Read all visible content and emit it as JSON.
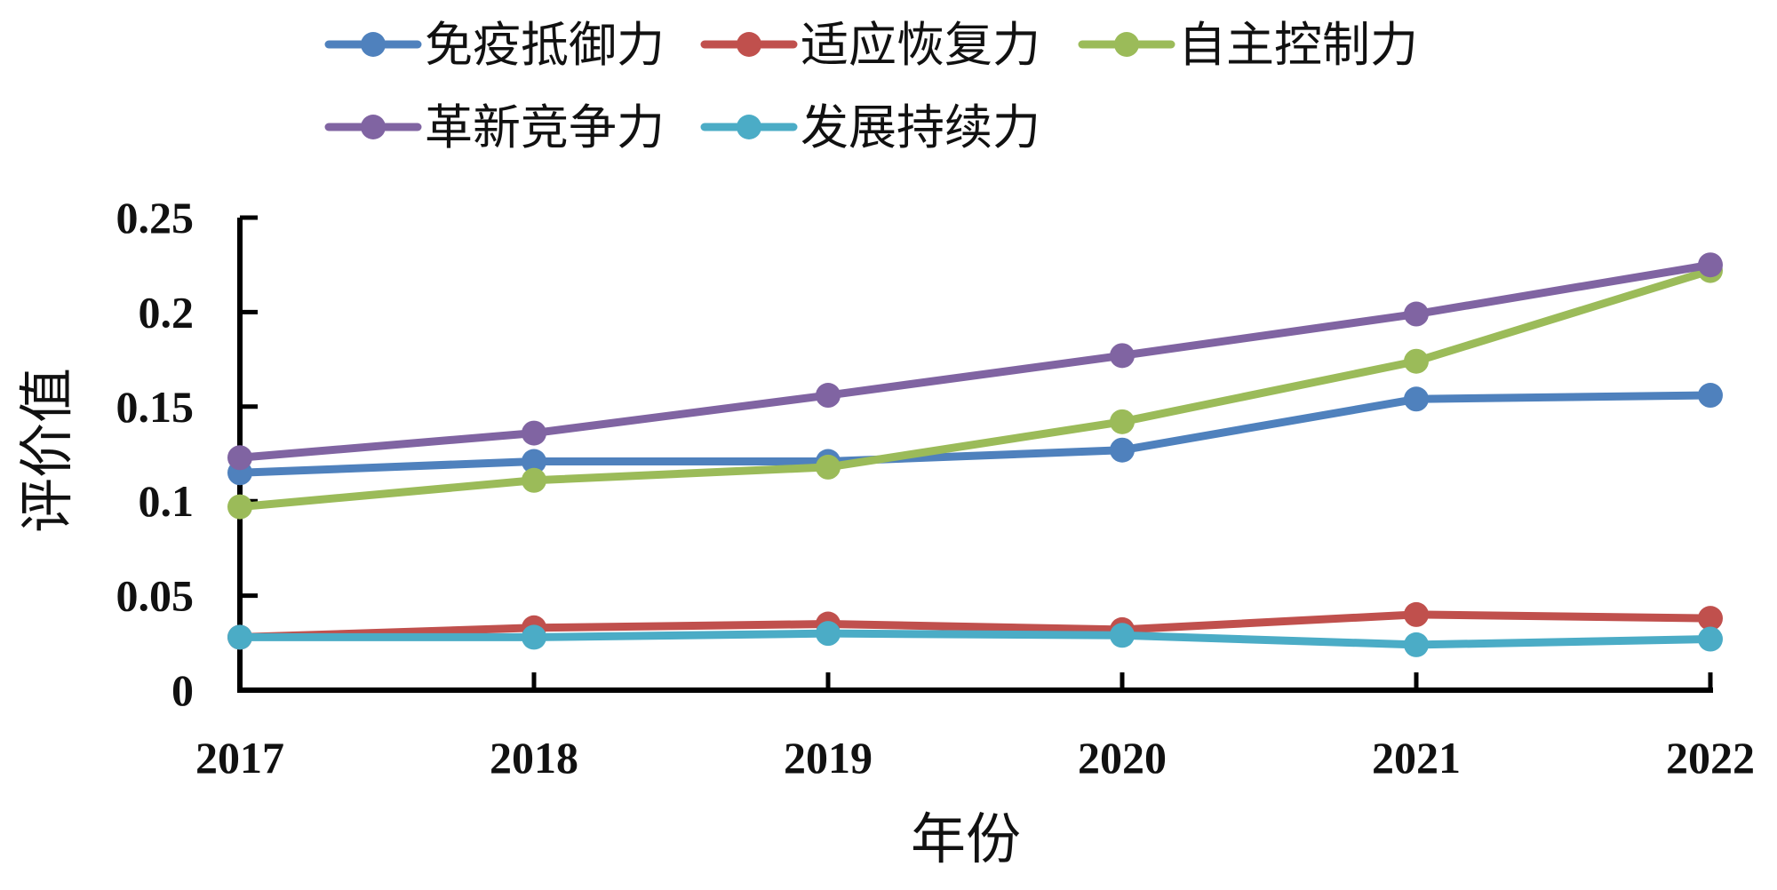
{
  "chart_data": {
    "type": "line",
    "title": "",
    "xlabel": "年份",
    "ylabel": "评价值",
    "x": [
      "2017",
      "2018",
      "2019",
      "2020",
      "2021",
      "2022"
    ],
    "ylim": [
      0,
      0.25
    ],
    "yticks": [
      0,
      0.05,
      0.1,
      0.15,
      0.2,
      0.25
    ],
    "ytick_labels": [
      "0",
      "0.05",
      "0.1",
      "0.15",
      "0.2",
      "0.25"
    ],
    "grid": false,
    "legend": "top",
    "series": [
      {
        "name": "免疫抵御力",
        "color": "#4F81BD",
        "values": [
          0.115,
          0.121,
          0.121,
          0.127,
          0.154,
          0.156
        ]
      },
      {
        "name": "适应恢复力",
        "color": "#C0504D",
        "values": [
          0.028,
          0.033,
          0.035,
          0.032,
          0.04,
          0.038
        ]
      },
      {
        "name": "自主控制力",
        "color": "#9BBB59",
        "values": [
          0.097,
          0.111,
          0.118,
          0.142,
          0.174,
          0.222
        ]
      },
      {
        "name": "革新竞争力",
        "color": "#8064A2",
        "values": [
          0.123,
          0.136,
          0.156,
          0.177,
          0.199,
          0.225
        ]
      },
      {
        "name": "发展持续力",
        "color": "#4BACC6",
        "values": [
          0.028,
          0.028,
          0.03,
          0.029,
          0.024,
          0.027
        ]
      }
    ]
  }
}
